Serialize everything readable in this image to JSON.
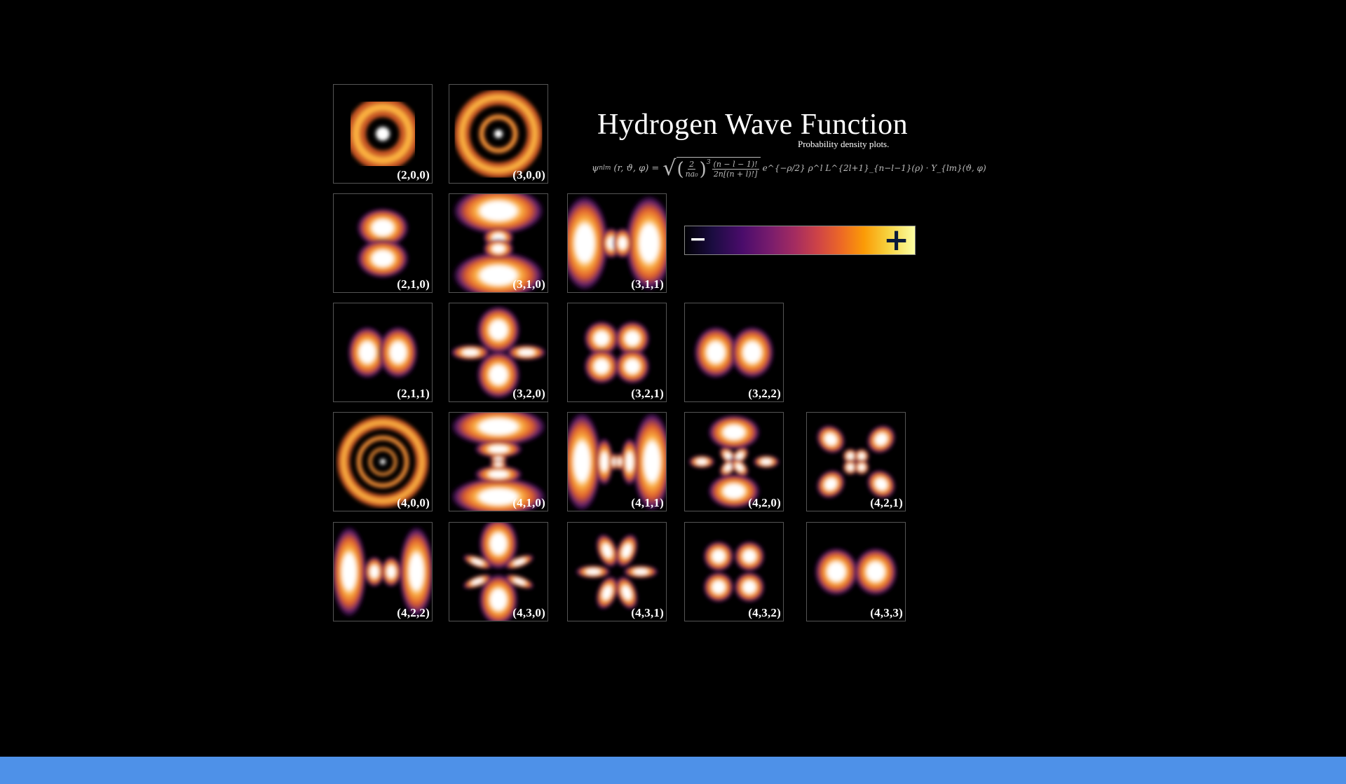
{
  "figure": {
    "title": "Hydrogen Wave Function",
    "subtitle": "Probability density plots.",
    "formula": {
      "lhs": "ψ",
      "lhs_sub": "nlm",
      "lhs_args": "(r, ϑ, φ) =",
      "frac1_num": "2",
      "frac1_den": "na₀",
      "exp1": "3",
      "frac2_num": "(n − l − 1)!",
      "frac2_den": "2n[(n + l)!]",
      "tail": "e^{−ρ/2} ρ^l L^{2l+1}_{n−l−1}(ρ) · Y_{lm}(ϑ, φ)"
    },
    "colorbar": {
      "minus": "−",
      "plus": "+",
      "colormap": "inferno"
    }
  },
  "tiles": [
    {
      "label": "(2,0,0)",
      "n": 2,
      "l": 0,
      "m": 0
    },
    {
      "label": "(3,0,0)",
      "n": 3,
      "l": 0,
      "m": 0
    },
    {
      "label": "(2,1,0)",
      "n": 2,
      "l": 1,
      "m": 0
    },
    {
      "label": "(3,1,0)",
      "n": 3,
      "l": 1,
      "m": 0
    },
    {
      "label": "(3,1,1)",
      "n": 3,
      "l": 1,
      "m": 1
    },
    {
      "label": "(2,1,1)",
      "n": 2,
      "l": 1,
      "m": 1
    },
    {
      "label": "(3,2,0)",
      "n": 3,
      "l": 2,
      "m": 0
    },
    {
      "label": "(3,2,1)",
      "n": 3,
      "l": 2,
      "m": 1
    },
    {
      "label": "(3,2,2)",
      "n": 3,
      "l": 2,
      "m": 2
    },
    {
      "label": "(4,0,0)",
      "n": 4,
      "l": 0,
      "m": 0
    },
    {
      "label": "(4,1,0)",
      "n": 4,
      "l": 1,
      "m": 0
    },
    {
      "label": "(4,1,1)",
      "n": 4,
      "l": 1,
      "m": 1
    },
    {
      "label": "(4,2,0)",
      "n": 4,
      "l": 2,
      "m": 0
    },
    {
      "label": "(4,2,1)",
      "n": 4,
      "l": 2,
      "m": 1
    },
    {
      "label": "(4,2,2)",
      "n": 4,
      "l": 2,
      "m": 2
    },
    {
      "label": "(4,3,0)",
      "n": 4,
      "l": 3,
      "m": 0
    },
    {
      "label": "(4,3,1)",
      "n": 4,
      "l": 3,
      "m": 1
    },
    {
      "label": "(4,3,2)",
      "n": 4,
      "l": 3,
      "m": 2
    },
    {
      "label": "(4,3,3)",
      "n": 4,
      "l": 3,
      "m": 3
    }
  ],
  "colors": {
    "background": "#000000",
    "bottom_bar": "#4e91e8",
    "glow_outer": "#5a1a6e",
    "glow_mid": "#e0602a",
    "glow_hot": "#fbb040",
    "core": "#ffffff"
  }
}
